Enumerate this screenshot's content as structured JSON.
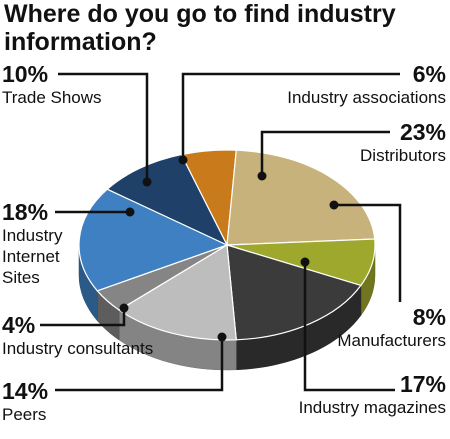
{
  "chart_data": {
    "type": "pie3d",
    "title": "Where do you go to find industry information?",
    "categories": [
      "Industry associations",
      "Distributors",
      "Manufacturers",
      "Industry magazines",
      "Peers",
      "Industry consultants",
      "Industry Internet Sites",
      "Trade Shows"
    ],
    "values": [
      6,
      23,
      8,
      17,
      14,
      4,
      18,
      10
    ],
    "value_labels": [
      "6%",
      "23%",
      "8%",
      "17%",
      "14%",
      "4%",
      "18%",
      "10%"
    ],
    "colors": [
      "#c97b1c",
      "#c6b27a",
      "#9ea82c",
      "#3b3b3b",
      "#bdbdbd",
      "#858585",
      "#3f80c2",
      "#1f4068"
    ]
  }
}
